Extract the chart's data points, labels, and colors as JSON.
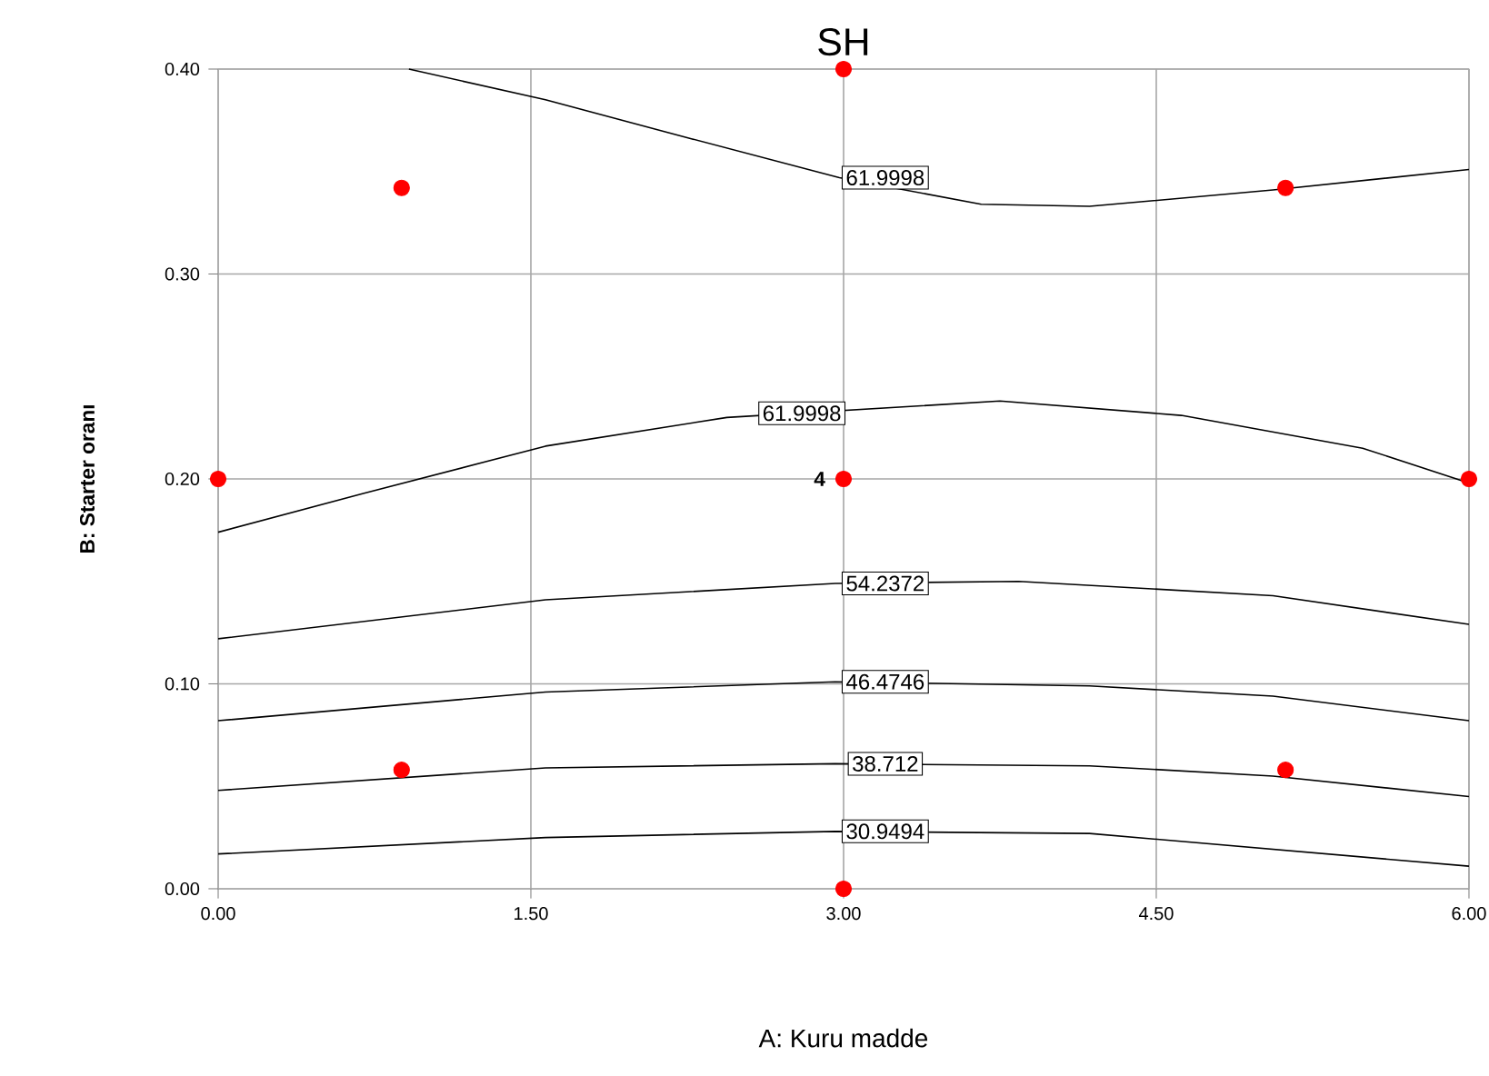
{
  "chart_data": {
    "type": "line",
    "title": "SH",
    "xlabel": "A: Kuru madde",
    "ylabel": "B: Starter oranı",
    "xlim": [
      0,
      6
    ],
    "ylim": [
      0,
      0.4
    ],
    "xticks": [
      {
        "value": 0,
        "label": "0.00"
      },
      {
        "value": 1.5,
        "label": "1.50"
      },
      {
        "value": 3,
        "label": "3.00"
      },
      {
        "value": 4.5,
        "label": "4.50"
      },
      {
        "value": 6,
        "label": "6.00"
      }
    ],
    "yticks": [
      {
        "value": 0,
        "label": "0.00"
      },
      {
        "value": 0.1,
        "label": "0.10"
      },
      {
        "value": 0.2,
        "label": "0.20"
      },
      {
        "value": 0.3,
        "label": "0.30"
      },
      {
        "value": 0.4,
        "label": "0.40"
      }
    ],
    "grid": true,
    "series": [
      {
        "color": "#000000",
        "marker": "none",
        "x": [
          0.915,
          1.57,
          2.27,
          2.98,
          3.66,
          4.18,
          5.06,
          6.0
        ],
        "values": [
          0.4,
          0.385,
          0.366,
          0.347,
          0.334,
          0.333,
          0.341,
          0.351
        ]
      },
      {
        "color": "#000000",
        "marker": "none",
        "x": [
          0,
          0.7,
          1.57,
          2.44,
          3.75,
          4.62,
          5.49,
          6.0
        ],
        "values": [
          0.174,
          0.193,
          0.216,
          0.23,
          0.238,
          0.231,
          0.215,
          0.198
        ]
      },
      {
        "color": "#000000",
        "marker": "none",
        "x": [
          0,
          1.57,
          2.96,
          3.84,
          5.06,
          6.0
        ],
        "values": [
          0.122,
          0.141,
          0.149,
          0.15,
          0.143,
          0.129
        ]
      },
      {
        "color": "#000000",
        "marker": "none",
        "x": [
          0,
          1.57,
          2.96,
          4.18,
          5.06,
          6.0
        ],
        "values": [
          0.082,
          0.096,
          0.101,
          0.099,
          0.094,
          0.082
        ]
      },
      {
        "color": "#000000",
        "marker": "none",
        "x": [
          0,
          1.57,
          2.96,
          4.18,
          5.06,
          6.0
        ],
        "values": [
          0.048,
          0.059,
          0.061,
          0.06,
          0.055,
          0.045
        ]
      },
      {
        "color": "#000000",
        "marker": "none",
        "x": [
          0,
          1.57,
          2.96,
          4.18,
          6.0
        ],
        "values": [
          0.017,
          0.025,
          0.028,
          0.027,
          0.011
        ]
      },
      {
        "type": "scatter",
        "color": "#ff0000",
        "x": [
          0,
          3,
          6,
          3,
          3,
          0.88,
          5.12,
          0.88,
          5.12
        ],
        "values": [
          0.2,
          0.2,
          0.2,
          0.4,
          0,
          0.342,
          0.342,
          0.058,
          0.058
        ]
      }
    ],
    "annotations": [
      {
        "text": "61.9998",
        "x": 3.2,
        "y": 0.347
      },
      {
        "text": "61.9998",
        "x": 2.8,
        "y": 0.232
      },
      {
        "text": "54.2372",
        "x": 3.2,
        "y": 0.149
      },
      {
        "text": "46.4746",
        "x": 3.2,
        "y": 0.101
      },
      {
        "text": "38.712",
        "x": 3.2,
        "y": 0.061
      },
      {
        "text": "30.9494",
        "x": 3.2,
        "y": 0.028
      },
      {
        "text": "4",
        "x": 3,
        "y": 0.2
      }
    ]
  }
}
